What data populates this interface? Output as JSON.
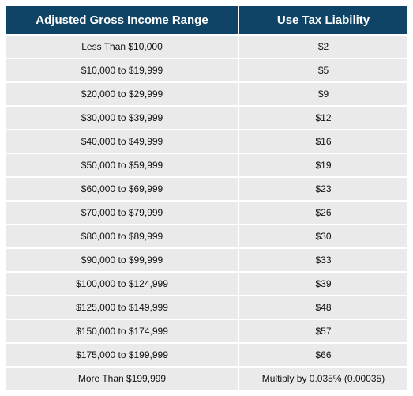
{
  "table": {
    "headers": [
      "Adjusted Gross Income Range",
      "Use Tax Liability"
    ],
    "rows": [
      [
        "Less Than $10,000",
        "$2"
      ],
      [
        "$10,000 to $19,999",
        "$5"
      ],
      [
        "$20,000 to $29,999",
        "$9"
      ],
      [
        "$30,000 to $39,999",
        "$12"
      ],
      [
        "$40,000 to $49,999",
        "$16"
      ],
      [
        "$50,000 to $59,999",
        "$19"
      ],
      [
        "$60,000 to $69,999",
        "$23"
      ],
      [
        "$70,000 to $79,999",
        "$26"
      ],
      [
        "$80,000 to $89,999",
        "$30"
      ],
      [
        "$90,000 to $99,999",
        "$33"
      ],
      [
        "$100,000 to $124,999",
        "$39"
      ],
      [
        "$125,000 to $149,999",
        "$48"
      ],
      [
        "$150,000 to $174,999",
        "$57"
      ],
      [
        "$175,000 to $199,999",
        "$66"
      ],
      [
        "More Than $199,999",
        "Multiply by 0.035% (0.00035)"
      ]
    ],
    "colors": {
      "header_bg": "#0f4467",
      "header_text": "#ffffff",
      "cell_bg": "#eaeaea",
      "cell_text": "#111111"
    }
  }
}
